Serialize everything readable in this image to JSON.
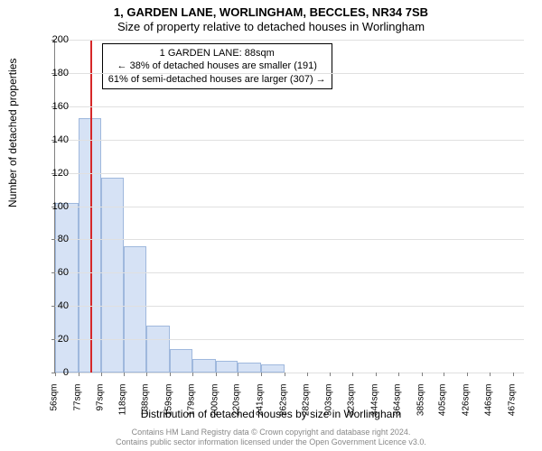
{
  "address_title": "1, GARDEN LANE, WORLINGHAM, BECCLES, NR34 7SB",
  "subtitle": "Size of property relative to detached houses in Worlingham",
  "ylabel": "Number of detached properties",
  "xlabel": "Distribution of detached houses by size in Worlingham",
  "chart": {
    "type": "bar",
    "ylim": [
      0,
      200
    ],
    "ytick_step": 20,
    "xmin": 56,
    "xmax": 477,
    "xticks": [
      56,
      77,
      97,
      118,
      138,
      159,
      179,
      200,
      220,
      241,
      262,
      282,
      303,
      323,
      344,
      364,
      385,
      405,
      426,
      446,
      467
    ],
    "xtick_unit": "sqm",
    "bar_fill": "#d6e2f5",
    "bar_border": "#9fb8dd",
    "grid_color": "#e0e0e0",
    "axis_color": "#808080",
    "background": "#ffffff",
    "bars": [
      {
        "x0": 56,
        "x1": 77,
        "value": 102
      },
      {
        "x0": 77,
        "x1": 97,
        "value": 153
      },
      {
        "x0": 97,
        "x1": 118,
        "value": 117
      },
      {
        "x0": 118,
        "x1": 138,
        "value": 76
      },
      {
        "x0": 138,
        "x1": 159,
        "value": 28
      },
      {
        "x0": 159,
        "x1": 179,
        "value": 14
      },
      {
        "x0": 179,
        "x1": 200,
        "value": 8
      },
      {
        "x0": 200,
        "x1": 220,
        "value": 7
      },
      {
        "x0": 220,
        "x1": 241,
        "value": 6
      },
      {
        "x0": 241,
        "x1": 262,
        "value": 5
      },
      {
        "x0": 262,
        "x1": 282,
        "value": 0
      },
      {
        "x0": 282,
        "x1": 303,
        "value": 0
      },
      {
        "x0": 303,
        "x1": 323,
        "value": 0
      },
      {
        "x0": 323,
        "x1": 344,
        "value": 0
      },
      {
        "x0": 344,
        "x1": 364,
        "value": 0
      },
      {
        "x0": 364,
        "x1": 385,
        "value": 0
      },
      {
        "x0": 385,
        "x1": 405,
        "value": 0
      },
      {
        "x0": 405,
        "x1": 426,
        "value": 0
      },
      {
        "x0": 426,
        "x1": 446,
        "value": 0
      },
      {
        "x0": 446,
        "x1": 467,
        "value": 0
      }
    ],
    "refline": {
      "x": 88,
      "color": "#d62728"
    },
    "annotation": {
      "line1": "1 GARDEN LANE: 88sqm",
      "line2": "← 38% of detached houses are smaller (191)",
      "line3": "61% of semi-detached houses are larger (307) →",
      "border": "#000000",
      "background": "#ffffff",
      "font_size": 11,
      "x": 98,
      "y_top": 200
    }
  },
  "attribution_1": "Contains HM Land Registry data © Crown copyright and database right 2024.",
  "attribution_2": "Contains public sector information licensed under the Open Government Licence v3.0."
}
